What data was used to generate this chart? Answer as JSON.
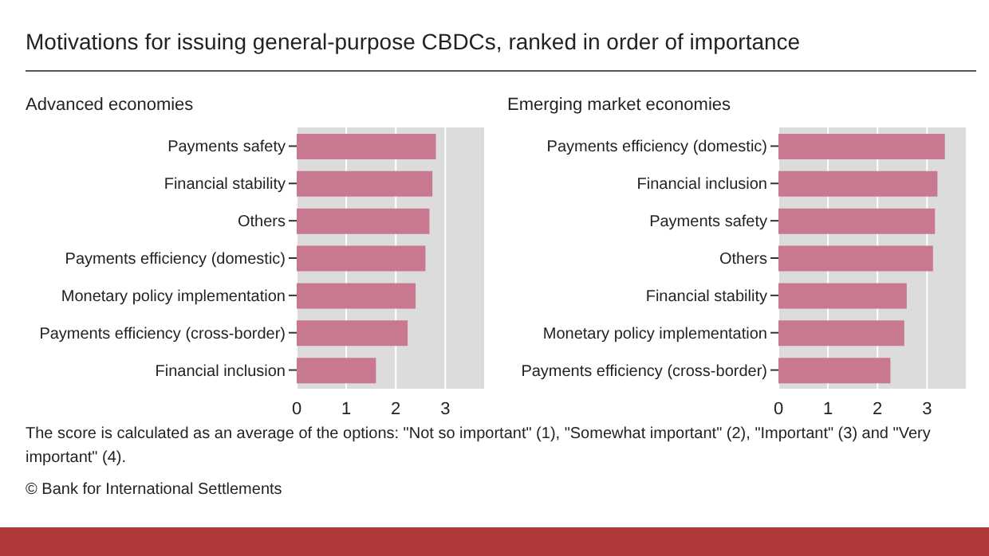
{
  "chart_data": [
    {
      "type": "bar",
      "orientation": "horizontal",
      "title": "Motivations for issuing general-purpose CBDCs, ranked in order of importance",
      "subtitle": "Advanced economies",
      "categories": [
        "Payments safety",
        "Financial stability",
        "Others",
        "Payments efficiency (domestic)",
        "Monetary policy implementation",
        "Payments efficiency (cross-border)",
        "Financial inclusion"
      ],
      "values": [
        2.81,
        2.74,
        2.68,
        2.6,
        2.4,
        2.24,
        1.6
      ],
      "color": "#c8798f",
      "xlim": [
        0,
        3.8
      ],
      "xticks": [
        0,
        1,
        2,
        3
      ],
      "grid": "x",
      "annotations": [
        "The score is calculated as an average of the options: \"Not so important\" (1), \"Somewhat important\" (2), \"Important\" (3) and \"Very important\" (4).",
        "© Bank for International Settlements"
      ]
    },
    {
      "type": "bar",
      "orientation": "horizontal",
      "subtitle": "Emerging market economies",
      "categories": [
        "Payments efficiency (domestic)",
        "Financial inclusion",
        "Payments safety",
        "Others",
        "Financial stability",
        "Monetary policy implementation",
        "Payments efficiency (cross-border)"
      ],
      "values": [
        3.36,
        3.21,
        3.16,
        3.12,
        2.59,
        2.54,
        2.26
      ],
      "color": "#c8798f",
      "xlim": [
        0,
        3.8
      ],
      "xticks": [
        0,
        1,
        2,
        3
      ],
      "grid": "x"
    }
  ]
}
